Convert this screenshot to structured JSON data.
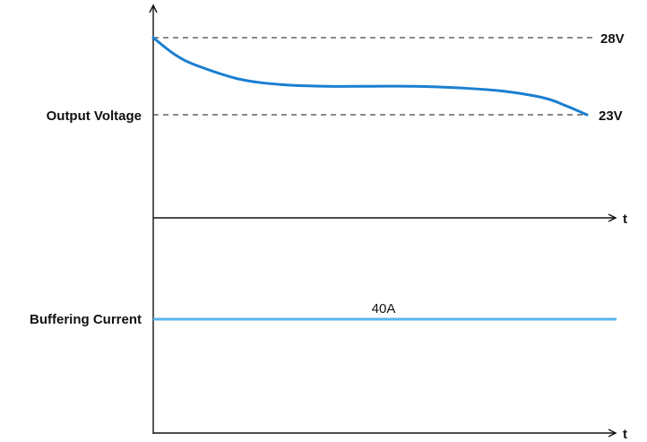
{
  "chart_data": {
    "type": "line",
    "voltage_panel": {
      "ylabel": "Output Voltage",
      "xlabel": "t",
      "reference_lines": [
        {
          "label": "28V",
          "value": 28
        },
        {
          "label": "23V",
          "value": 23
        }
      ],
      "series": [
        {
          "color": "#1a7fd1",
          "x": [
            0,
            0.05,
            0.1,
            0.2,
            0.3,
            0.4,
            0.5,
            0.6,
            0.7,
            0.8,
            0.9,
            0.95,
            1.0
          ],
          "y": [
            28,
            26.9,
            26.2,
            25.3,
            24.95,
            24.85,
            24.85,
            24.85,
            24.75,
            24.55,
            24.1,
            23.6,
            23
          ]
        }
      ]
    },
    "current_panel": {
      "ylabel": "Buffering Current",
      "xlabel": "t",
      "series": [
        {
          "label": "40A",
          "color": "#5ab4ec",
          "value": 40
        }
      ]
    }
  }
}
